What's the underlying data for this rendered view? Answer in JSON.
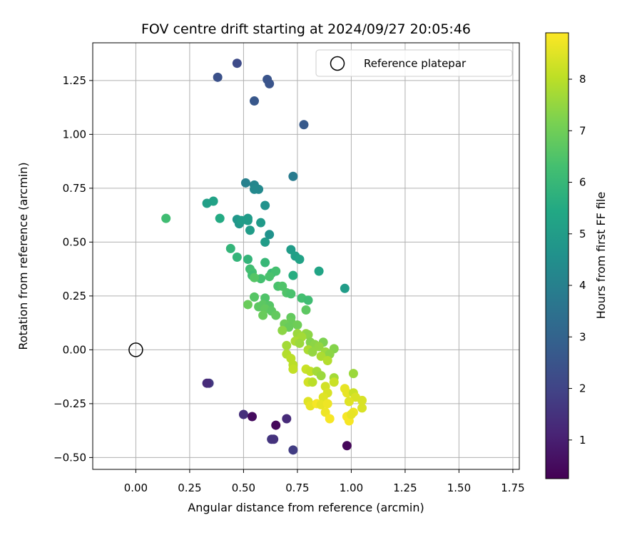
{
  "chart_data": {
    "type": "scatter",
    "title": "FOV centre drift starting at 2024/09/27 20:05:46",
    "xlabel": "Angular distance from reference (arcmin)",
    "ylabel": "Rotation from reference (arcmin)",
    "colorbar_label": "Hours from first FF file",
    "xlim": [
      -0.2,
      1.78
    ],
    "ylim": [
      -0.555,
      1.425
    ],
    "clim": [
      0.25,
      8.9
    ],
    "grid": true,
    "legend": {
      "label": "Reference platepar",
      "location": "top-right"
    },
    "xticks": [
      0.0,
      0.25,
      0.5,
      0.75,
      1.0,
      1.25,
      1.5,
      1.75
    ],
    "xtick_labels": [
      "0.00",
      "0.25",
      "0.50",
      "0.75",
      "1.00",
      "1.25",
      "1.50",
      "1.75"
    ],
    "yticks": [
      -0.5,
      -0.25,
      0.0,
      0.25,
      0.5,
      0.75,
      1.0,
      1.25
    ],
    "ytick_labels": [
      "−0.50",
      "−0.25",
      "0.00",
      "0.25",
      "0.50",
      "0.75",
      "1.00",
      "1.25"
    ],
    "cticks": [
      1,
      2,
      3,
      4,
      5,
      6,
      7,
      8
    ],
    "ctick_labels": [
      "1",
      "2",
      "3",
      "4",
      "5",
      "6",
      "7",
      "8"
    ],
    "reference": {
      "x": 0.0,
      "y": 0.0
    },
    "points": [
      [
        0.47,
        1.33,
        2.2
      ],
      [
        0.38,
        1.265,
        2.4
      ],
      [
        0.61,
        1.255,
        2.5
      ],
      [
        0.62,
        1.235,
        2.5
      ],
      [
        0.55,
        1.155,
        2.6
      ],
      [
        0.78,
        1.045,
        2.7
      ],
      [
        0.73,
        0.805,
        3.8
      ],
      [
        0.51,
        0.775,
        4.0
      ],
      [
        0.55,
        0.765,
        4.2
      ],
      [
        0.57,
        0.745,
        4.3
      ],
      [
        0.55,
        0.745,
        4.3
      ],
      [
        0.36,
        0.69,
        5.2
      ],
      [
        0.33,
        0.68,
        5.1
      ],
      [
        0.6,
        0.67,
        4.6
      ],
      [
        0.39,
        0.61,
        5.5
      ],
      [
        0.47,
        0.605,
        4.8
      ],
      [
        0.52,
        0.61,
        4.9
      ],
      [
        0.52,
        0.6,
        5.0
      ],
      [
        0.48,
        0.585,
        4.8
      ],
      [
        0.58,
        0.59,
        4.9
      ],
      [
        0.49,
        0.6,
        5.0
      ],
      [
        0.53,
        0.555,
        5.0
      ],
      [
        0.62,
        0.535,
        4.6
      ],
      [
        0.6,
        0.5,
        5.0
      ],
      [
        0.14,
        0.61,
        6.2
      ],
      [
        0.44,
        0.47,
        5.9
      ],
      [
        0.72,
        0.465,
        5.0
      ],
      [
        0.74,
        0.435,
        5.1
      ],
      [
        0.76,
        0.42,
        5.2
      ],
      [
        0.47,
        0.43,
        5.9
      ],
      [
        0.52,
        0.42,
        5.9
      ],
      [
        0.6,
        0.405,
        6.0
      ],
      [
        0.53,
        0.375,
        6.2
      ],
      [
        0.54,
        0.36,
        6.3
      ],
      [
        0.63,
        0.355,
        6.1
      ],
      [
        0.85,
        0.365,
        5.3
      ],
      [
        0.54,
        0.345,
        6.2
      ],
      [
        0.65,
        0.365,
        6.3
      ],
      [
        0.73,
        0.345,
        5.6
      ],
      [
        0.58,
        0.33,
        6.3
      ],
      [
        0.62,
        0.34,
        6.4
      ],
      [
        0.55,
        0.335,
        6.6
      ],
      [
        0.66,
        0.295,
        6.4
      ],
      [
        0.68,
        0.295,
        6.5
      ],
      [
        0.97,
        0.285,
        5.0
      ],
      [
        0.7,
        0.265,
        6.5
      ],
      [
        0.72,
        0.26,
        6.4
      ],
      [
        0.55,
        0.245,
        6.6
      ],
      [
        0.6,
        0.24,
        6.5
      ],
      [
        0.77,
        0.24,
        6.3
      ],
      [
        0.8,
        0.23,
        6.2
      ],
      [
        0.52,
        0.21,
        6.9
      ],
      [
        0.59,
        0.21,
        6.7
      ],
      [
        0.62,
        0.205,
        6.6
      ],
      [
        0.57,
        0.2,
        6.7
      ],
      [
        0.6,
        0.19,
        6.8
      ],
      [
        0.63,
        0.18,
        6.7
      ],
      [
        0.79,
        0.185,
        6.7
      ],
      [
        0.59,
        0.16,
        6.9
      ],
      [
        0.65,
        0.16,
        6.8
      ],
      [
        0.72,
        0.15,
        6.8
      ],
      [
        0.72,
        0.13,
        6.9
      ],
      [
        0.69,
        0.12,
        7.0
      ],
      [
        0.75,
        0.115,
        7.0
      ],
      [
        0.71,
        0.105,
        6.9
      ],
      [
        0.68,
        0.09,
        7.4
      ],
      [
        0.75,
        0.075,
        7.6
      ],
      [
        0.79,
        0.075,
        7.5
      ],
      [
        0.8,
        0.07,
        7.4
      ],
      [
        0.77,
        0.06,
        7.7
      ],
      [
        0.74,
        0.04,
        7.8
      ],
      [
        0.76,
        0.03,
        7.6
      ],
      [
        0.81,
        0.035,
        7.3
      ],
      [
        0.87,
        0.035,
        7.2
      ],
      [
        0.83,
        0.025,
        7.4
      ],
      [
        0.85,
        0.015,
        7.5
      ],
      [
        0.92,
        0.005,
        7.3
      ],
      [
        0.7,
        0.02,
        7.7
      ],
      [
        0.8,
        0.0,
        7.8
      ],
      [
        0.82,
        -0.01,
        7.5
      ],
      [
        0.88,
        -0.01,
        7.6
      ],
      [
        0.9,
        -0.02,
        7.4
      ],
      [
        0.7,
        -0.02,
        7.9
      ],
      [
        0.72,
        -0.04,
        8.0
      ],
      [
        0.86,
        -0.03,
        7.8
      ],
      [
        0.89,
        -0.05,
        7.9
      ],
      [
        0.73,
        -0.07,
        8.0
      ],
      [
        0.73,
        -0.09,
        8.1
      ],
      [
        0.79,
        -0.09,
        8.2
      ],
      [
        0.81,
        -0.1,
        8.1
      ],
      [
        0.84,
        -0.1,
        7.7
      ],
      [
        0.86,
        -0.12,
        7.6
      ],
      [
        0.92,
        -0.13,
        7.7
      ],
      [
        1.01,
        -0.11,
        7.6
      ],
      [
        0.8,
        -0.15,
        8.3
      ],
      [
        0.82,
        -0.15,
        8.0
      ],
      [
        0.88,
        -0.17,
        8.3
      ],
      [
        0.92,
        -0.15,
        8.2
      ],
      [
        0.97,
        -0.18,
        8.6
      ],
      [
        0.98,
        -0.2,
        8.6
      ],
      [
        0.89,
        -0.2,
        8.4
      ],
      [
        0.87,
        -0.22,
        8.5
      ],
      [
        1.01,
        -0.2,
        8.2
      ],
      [
        1.05,
        -0.235,
        8.4
      ],
      [
        1.02,
        -0.22,
        8.4
      ],
      [
        0.8,
        -0.24,
        8.5
      ],
      [
        0.81,
        -0.26,
        8.6
      ],
      [
        0.84,
        -0.25,
        8.8
      ],
      [
        0.86,
        -0.255,
        8.6
      ],
      [
        0.89,
        -0.25,
        8.7
      ],
      [
        0.99,
        -0.24,
        8.5
      ],
      [
        1.05,
        -0.27,
        8.4
      ],
      [
        0.88,
        -0.29,
        8.7
      ],
      [
        1.01,
        -0.29,
        8.7
      ],
      [
        0.9,
        -0.32,
        8.8
      ],
      [
        0.98,
        -0.31,
        8.8
      ],
      [
        0.99,
        -0.33,
        8.8
      ],
      [
        1.0,
        -0.3,
        8.6
      ],
      [
        0.34,
        -0.155,
        1.7
      ],
      [
        0.33,
        -0.155,
        1.3
      ],
      [
        0.5,
        -0.3,
        1.4
      ],
      [
        0.54,
        -0.31,
        0.5
      ],
      [
        0.7,
        -0.32,
        1.3
      ],
      [
        0.65,
        -0.35,
        0.4
      ],
      [
        0.63,
        -0.415,
        1.6
      ],
      [
        0.64,
        -0.415,
        1.5
      ],
      [
        0.73,
        -0.465,
        1.8
      ],
      [
        0.98,
        -0.445,
        0.4
      ]
    ]
  }
}
